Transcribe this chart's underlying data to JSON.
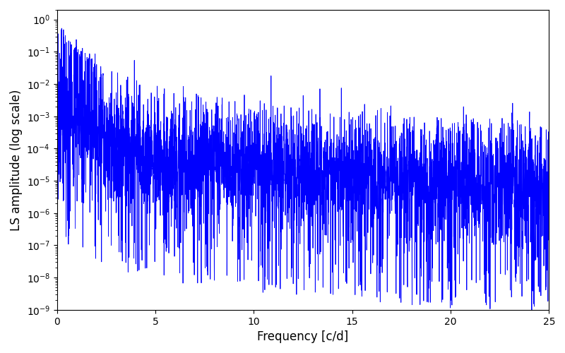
{
  "xlabel": "Frequency [c/d]",
  "ylabel": "LS amplitude (log scale)",
  "xlim": [
    0,
    25
  ],
  "ylim": [
    1e-09,
    2.0
  ],
  "line_color": "#0000ff",
  "line_width": 0.6,
  "background_color": "#ffffff",
  "figsize": [
    8.0,
    5.0
  ],
  "dpi": 100,
  "seed": 7,
  "n_points": 4000,
  "freq_max": 25.0
}
